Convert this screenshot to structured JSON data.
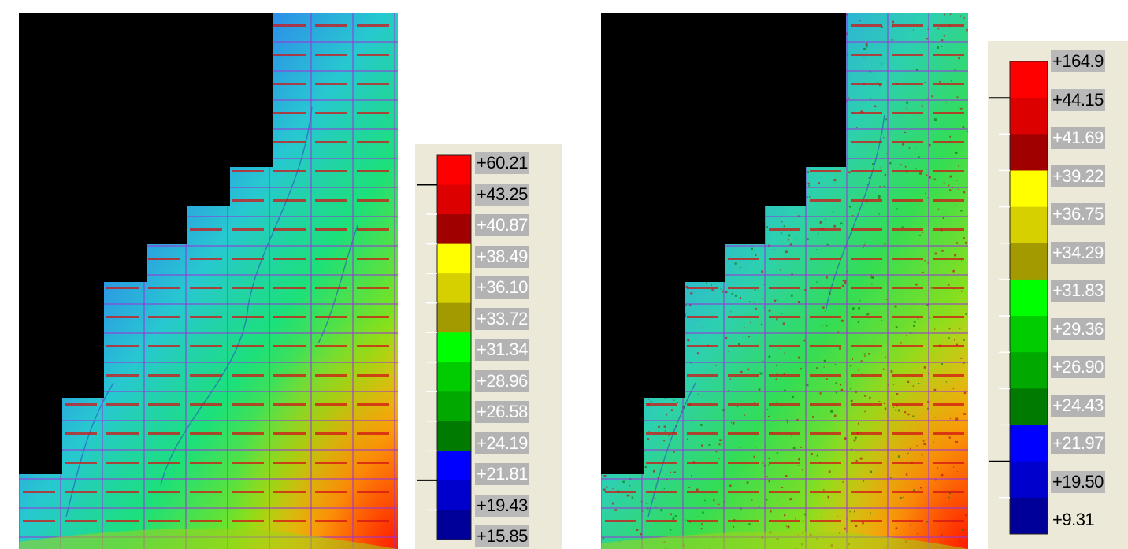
{
  "colors": {
    "void": "#000000",
    "grid_line": "#9a35d8",
    "tile_label": "#d21414",
    "panel_bg": "#ece9d8"
  },
  "maps": [
    {
      "id": "left",
      "legend": {
        "bands": [
          "#ff0000",
          "#dd0000",
          "#a00000",
          "#ffff00",
          "#d6d000",
          "#a39a00",
          "#00ff00",
          "#00cc00",
          "#00a800",
          "#007a00",
          "#0000ff",
          "#0000cc",
          "#000099"
        ],
        "labels": [
          {
            "text": "+60.21",
            "style": "active"
          },
          {
            "text": "+43.25",
            "style": "active"
          },
          {
            "text": "+40.87",
            "style": "faded"
          },
          {
            "text": "+38.49",
            "style": "faded"
          },
          {
            "text": "+36.10",
            "style": "faded"
          },
          {
            "text": "+33.72",
            "style": "faded"
          },
          {
            "text": "+31.34",
            "style": "faded"
          },
          {
            "text": "+28.96",
            "style": "faded"
          },
          {
            "text": "+26.58",
            "style": "faded"
          },
          {
            "text": "+24.19",
            "style": "faded"
          },
          {
            "text": "+21.81",
            "style": "faded"
          },
          {
            "text": "+19.43",
            "style": "active"
          },
          {
            "text": "+15.85",
            "style": "active"
          }
        ]
      }
    },
    {
      "id": "right",
      "legend": {
        "bands": [
          "#ff0000",
          "#dd0000",
          "#a00000",
          "#ffff00",
          "#d6d000",
          "#a39a00",
          "#00ff00",
          "#00cc00",
          "#00a800",
          "#007a00",
          "#0000ff",
          "#0000cc",
          "#000099"
        ],
        "labels": [
          {
            "text": "+164.9",
            "style": "active"
          },
          {
            "text": "+44.15",
            "style": "active"
          },
          {
            "text": "+41.69",
            "style": "faded"
          },
          {
            "text": "+39.22",
            "style": "faded"
          },
          {
            "text": "+36.75",
            "style": "faded"
          },
          {
            "text": "+34.29",
            "style": "faded"
          },
          {
            "text": "+31.83",
            "style": "faded"
          },
          {
            "text": "+29.36",
            "style": "faded"
          },
          {
            "text": "+26.90",
            "style": "faded"
          },
          {
            "text": "+24.43",
            "style": "faded"
          },
          {
            "text": "+21.97",
            "style": "faded"
          },
          {
            "text": "+19.50",
            "style": "active"
          },
          {
            "text": "+9.31",
            "style": "plain"
          }
        ]
      }
    }
  ]
}
